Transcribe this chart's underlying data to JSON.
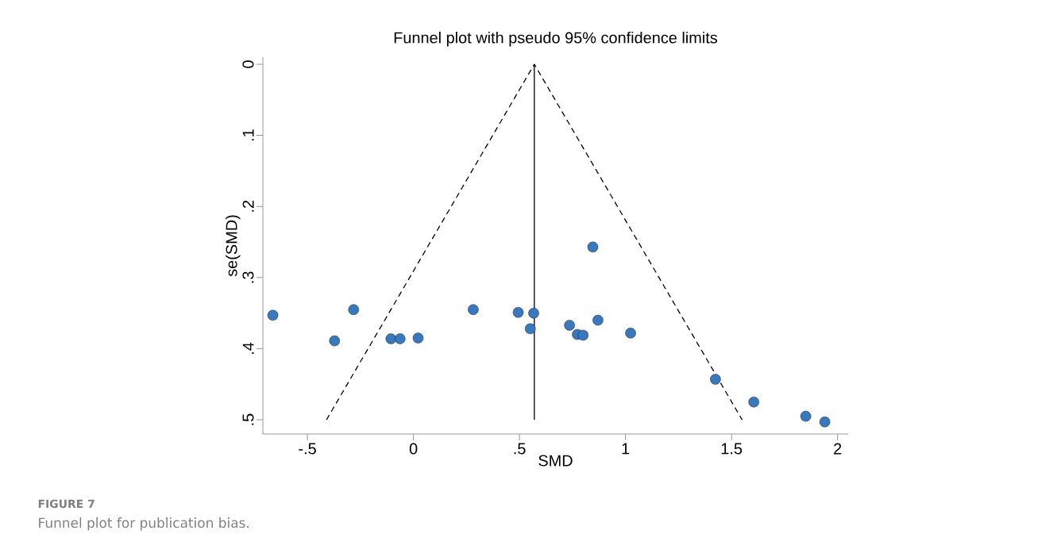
{
  "chart_data": {
    "type": "scatter",
    "title": "Funnel plot with pseudo 95% confidence limits",
    "xlabel": "SMD",
    "ylabel": "se(SMD)",
    "annotations": [
      "FIGURE 7",
      "Funnel plot for publication bias."
    ],
    "xlim": [
      -0.71,
      2.05
    ],
    "ylim": [
      0.52,
      -0.01
    ],
    "xticks": [
      {
        "value": -0.5,
        "label": "-.5"
      },
      0,
      {
        "value": 0.5,
        "label": ".5"
      },
      1,
      1.5,
      2
    ],
    "yticks": [
      0,
      {
        "value": 0.1,
        "label": ".1"
      },
      {
        "value": 0.2,
        "label": ".2"
      },
      {
        "value": 0.3,
        "label": ".3"
      },
      {
        "value": 0.4,
        "label": ".4"
      },
      {
        "value": 0.5,
        "label": ".5"
      }
    ],
    "series": [
      {
        "marker": "circle",
        "color": "#3a78bd",
        "x": [
          -0.663,
          -0.372,
          -0.282,
          -0.106,
          -0.063,
          0.022,
          0.282,
          0.494,
          0.567,
          0.551,
          0.846,
          0.736,
          0.773,
          0.8,
          0.87,
          1.024,
          1.424,
          1.605,
          1.85,
          1.94
        ],
        "values": [
          0.353,
          0.389,
          0.345,
          0.386,
          0.386,
          0.385,
          0.345,
          0.349,
          0.35,
          0.372,
          0.257,
          0.367,
          0.38,
          0.381,
          0.36,
          0.378,
          0.443,
          0.475,
          0.495,
          0.503
        ]
      },
      {
        "type": "line",
        "marker": "none",
        "color": "#000000",
        "line_style": "solid",
        "x": [
          0.57,
          0.57
        ],
        "values": [
          0.5,
          0
        ]
      },
      {
        "type": "line",
        "marker": "none",
        "color": "#000000",
        "line_style": "dashed",
        "x": [
          -0.41,
          0.57,
          1.55
        ],
        "values": [
          0.5,
          0,
          0.5
        ]
      }
    ]
  }
}
